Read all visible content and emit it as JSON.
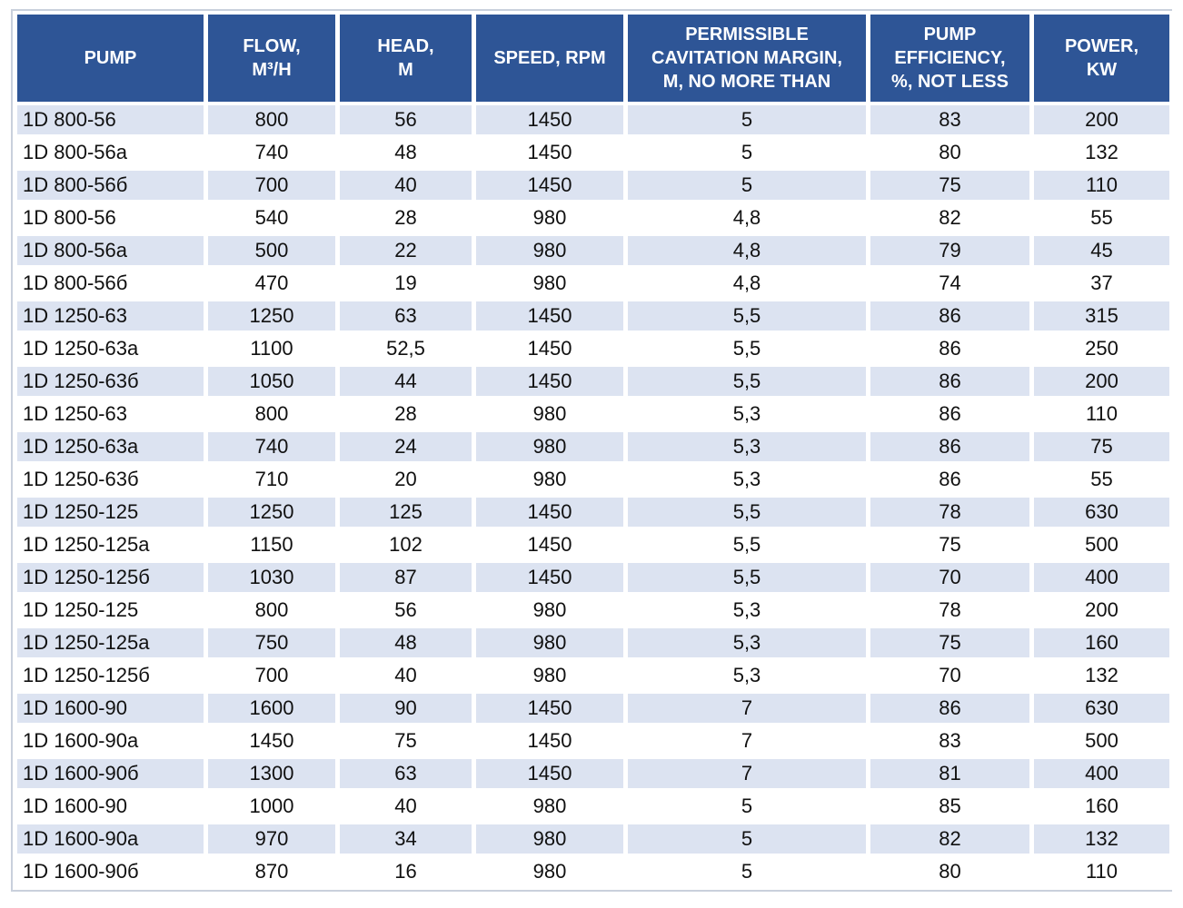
{
  "title": "Pump specifications table",
  "colors": {
    "header_bg": "#2e5596",
    "header_text": "#ffffff",
    "row_alt_bg": "#dce3f1",
    "row_bg": "#ffffff",
    "data_text": "#111111",
    "frame_border": "#c9d0dc"
  },
  "table": {
    "columns": [
      {
        "id": "pump",
        "label": "PUMP"
      },
      {
        "id": "flow",
        "label": "FLOW,\nM³/H"
      },
      {
        "id": "head",
        "label": "HEAD,\nM"
      },
      {
        "id": "speed",
        "label": "SPEED, RPM"
      },
      {
        "id": "cavitation",
        "label": "PERMISSIBLE\nCAVITATION MARGIN,\nM, NO MORE THAN"
      },
      {
        "id": "efficiency",
        "label": "PUMP\nEFFICIENCY,\n%, NOT LESS"
      },
      {
        "id": "power",
        "label": "POWER,\nKW"
      }
    ],
    "rows": [
      [
        "1D 800-56",
        "800",
        "56",
        "1450",
        "5",
        "83",
        "200"
      ],
      [
        "1D 800-56a",
        "740",
        "48",
        "1450",
        "5",
        "80",
        "132"
      ],
      [
        "1D 800-56б",
        "700",
        "40",
        "1450",
        "5",
        "75",
        "110"
      ],
      [
        "1D 800-56",
        "540",
        "28",
        "980",
        "4,8",
        "82",
        "55"
      ],
      [
        "1D 800-56a",
        "500",
        "22",
        "980",
        "4,8",
        "79",
        "45"
      ],
      [
        "1D 800-56б",
        "470",
        "19",
        "980",
        "4,8",
        "74",
        "37"
      ],
      [
        "1D 1250-63",
        "1250",
        "63",
        "1450",
        "5,5",
        "86",
        "315"
      ],
      [
        "1D 1250-63a",
        "1100",
        "52,5",
        "1450",
        "5,5",
        "86",
        "250"
      ],
      [
        "1D 1250-63б",
        "1050",
        "44",
        "1450",
        "5,5",
        "86",
        "200"
      ],
      [
        "1D 1250-63",
        "800",
        "28",
        "980",
        "5,3",
        "86",
        "110"
      ],
      [
        "1D 1250-63a",
        "740",
        "24",
        "980",
        "5,3",
        "86",
        "75"
      ],
      [
        "1D 1250-63б",
        "710",
        "20",
        "980",
        "5,3",
        "86",
        "55"
      ],
      [
        "1D 1250-125",
        "1250",
        "125",
        "1450",
        "5,5",
        "78",
        "630"
      ],
      [
        "1D 1250-125a",
        "1150",
        "102",
        "1450",
        "5,5",
        "75",
        "500"
      ],
      [
        "1D 1250-125б",
        "1030",
        "87",
        "1450",
        "5,5",
        "70",
        "400"
      ],
      [
        "1D 1250-125",
        "800",
        "56",
        "980",
        "5,3",
        "78",
        "200"
      ],
      [
        "1D 1250-125a",
        "750",
        "48",
        "980",
        "5,3",
        "75",
        "160"
      ],
      [
        "1D 1250-125б",
        "700",
        "40",
        "980",
        "5,3",
        "70",
        "132"
      ],
      [
        "1D 1600-90",
        "1600",
        "90",
        "1450",
        "7",
        "86",
        "630"
      ],
      [
        "1D 1600-90a",
        "1450",
        "75",
        "1450",
        "7",
        "83",
        "500"
      ],
      [
        "1D 1600-90б",
        "1300",
        "63",
        "1450",
        "7",
        "81",
        "400"
      ],
      [
        "1D 1600-90",
        "1000",
        "40",
        "980",
        "5",
        "85",
        "160"
      ],
      [
        "1D 1600-90a",
        "970",
        "34",
        "980",
        "5",
        "82",
        "132"
      ],
      [
        "1D 1600-90б",
        "870",
        "16",
        "980",
        "5",
        "80",
        "110"
      ]
    ]
  }
}
